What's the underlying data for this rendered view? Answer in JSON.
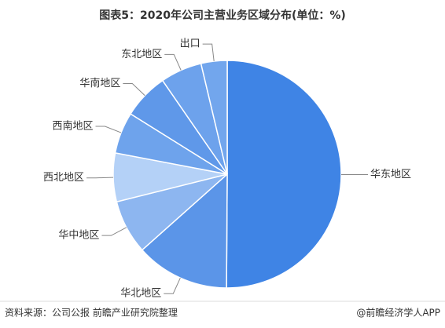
{
  "chart_data": {
    "type": "pie",
    "title": "图表5：2020年公司主营业务区域分布(单位：%)",
    "categories": [
      "华东地区",
      "华北地区",
      "华中地区",
      "西北地区",
      "西南地区",
      "华南地区",
      "东北地区",
      "出口"
    ],
    "values": [
      50.1,
      13.3,
      7.7,
      6.9,
      5.9,
      6.5,
      5.9,
      3.7
    ],
    "colors": [
      "#3f84e5",
      "#5b95e8",
      "#8db6f0",
      "#b4d1f7",
      "#6ea3ec",
      "#5f98e9",
      "#6da2ec",
      "#72a6ed"
    ]
  },
  "footer": {
    "source": "资料来源：公司公报 前瞻产业研究院整理",
    "brand": "@前瞻经济学人APP"
  }
}
